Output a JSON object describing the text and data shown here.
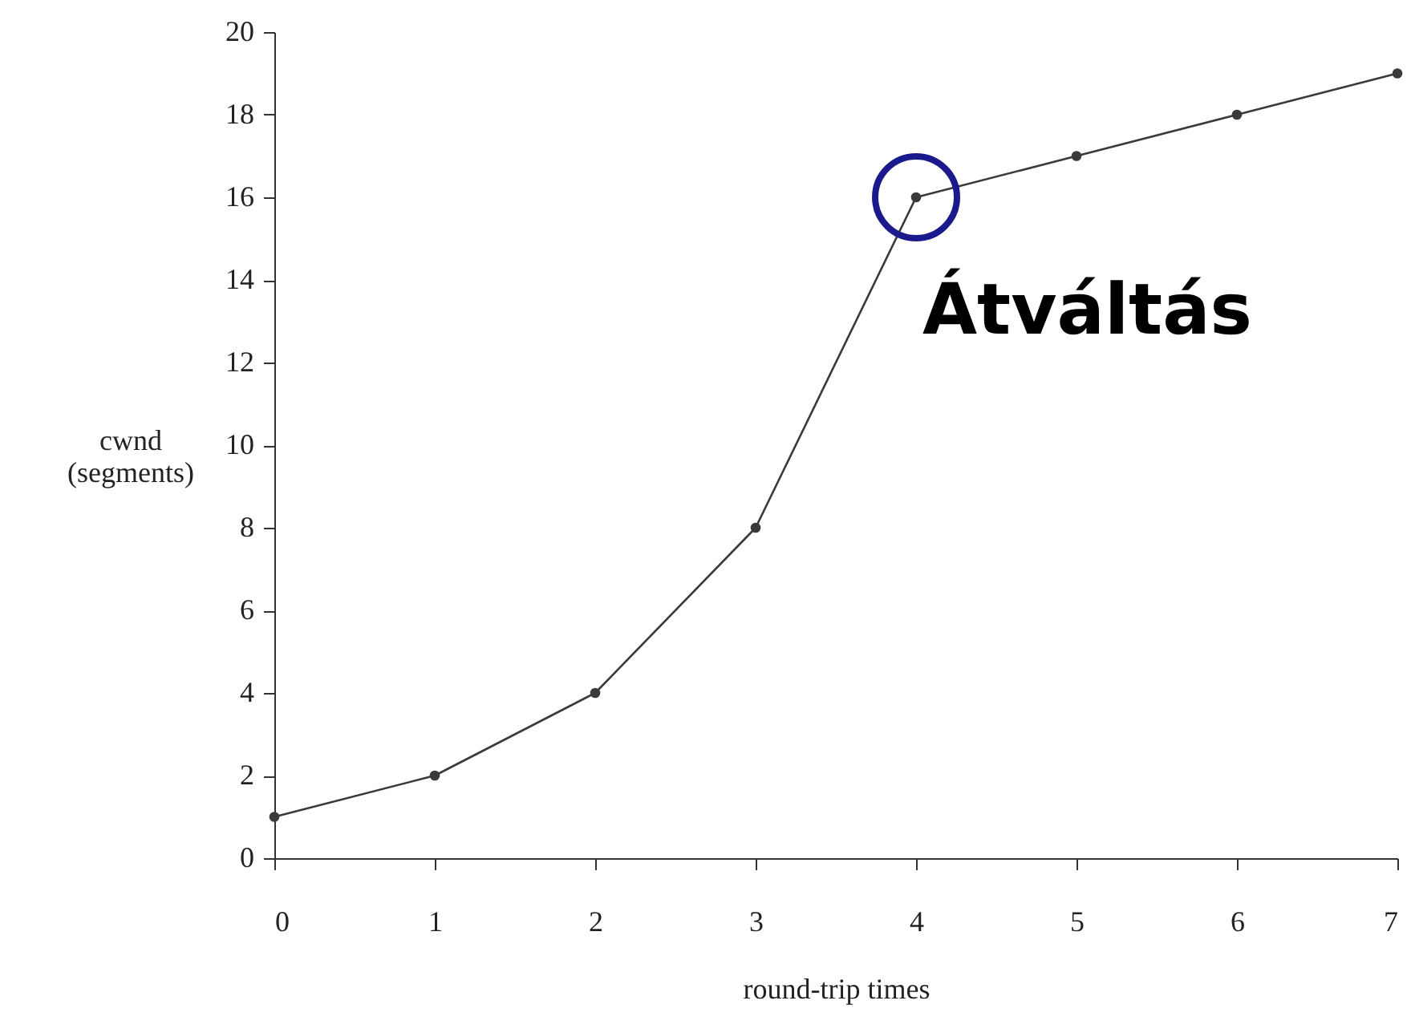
{
  "chart_data": {
    "type": "line",
    "xlabel": "round-trip times",
    "ylabel": "cwnd\n(segments)",
    "x": [
      0,
      1,
      2,
      3,
      4,
      5,
      6,
      7
    ],
    "series": [
      {
        "color": "#3a3a3a",
        "values": [
          1,
          2,
          4,
          8,
          16,
          17,
          18,
          19
        ]
      }
    ],
    "xlim": [
      0,
      7
    ],
    "xticks": [
      0,
      1,
      2,
      3,
      4,
      5,
      6,
      7
    ],
    "ylim": [
      0,
      20
    ],
    "yticks": [
      0,
      2,
      4,
      6,
      8,
      10,
      12,
      14,
      16,
      18,
      20
    ],
    "annotations": [
      {
        "text": "Átváltás",
        "x": 4,
        "y": 16
      }
    ],
    "grid": false,
    "marker": "circle",
    "line_style": "solid"
  }
}
